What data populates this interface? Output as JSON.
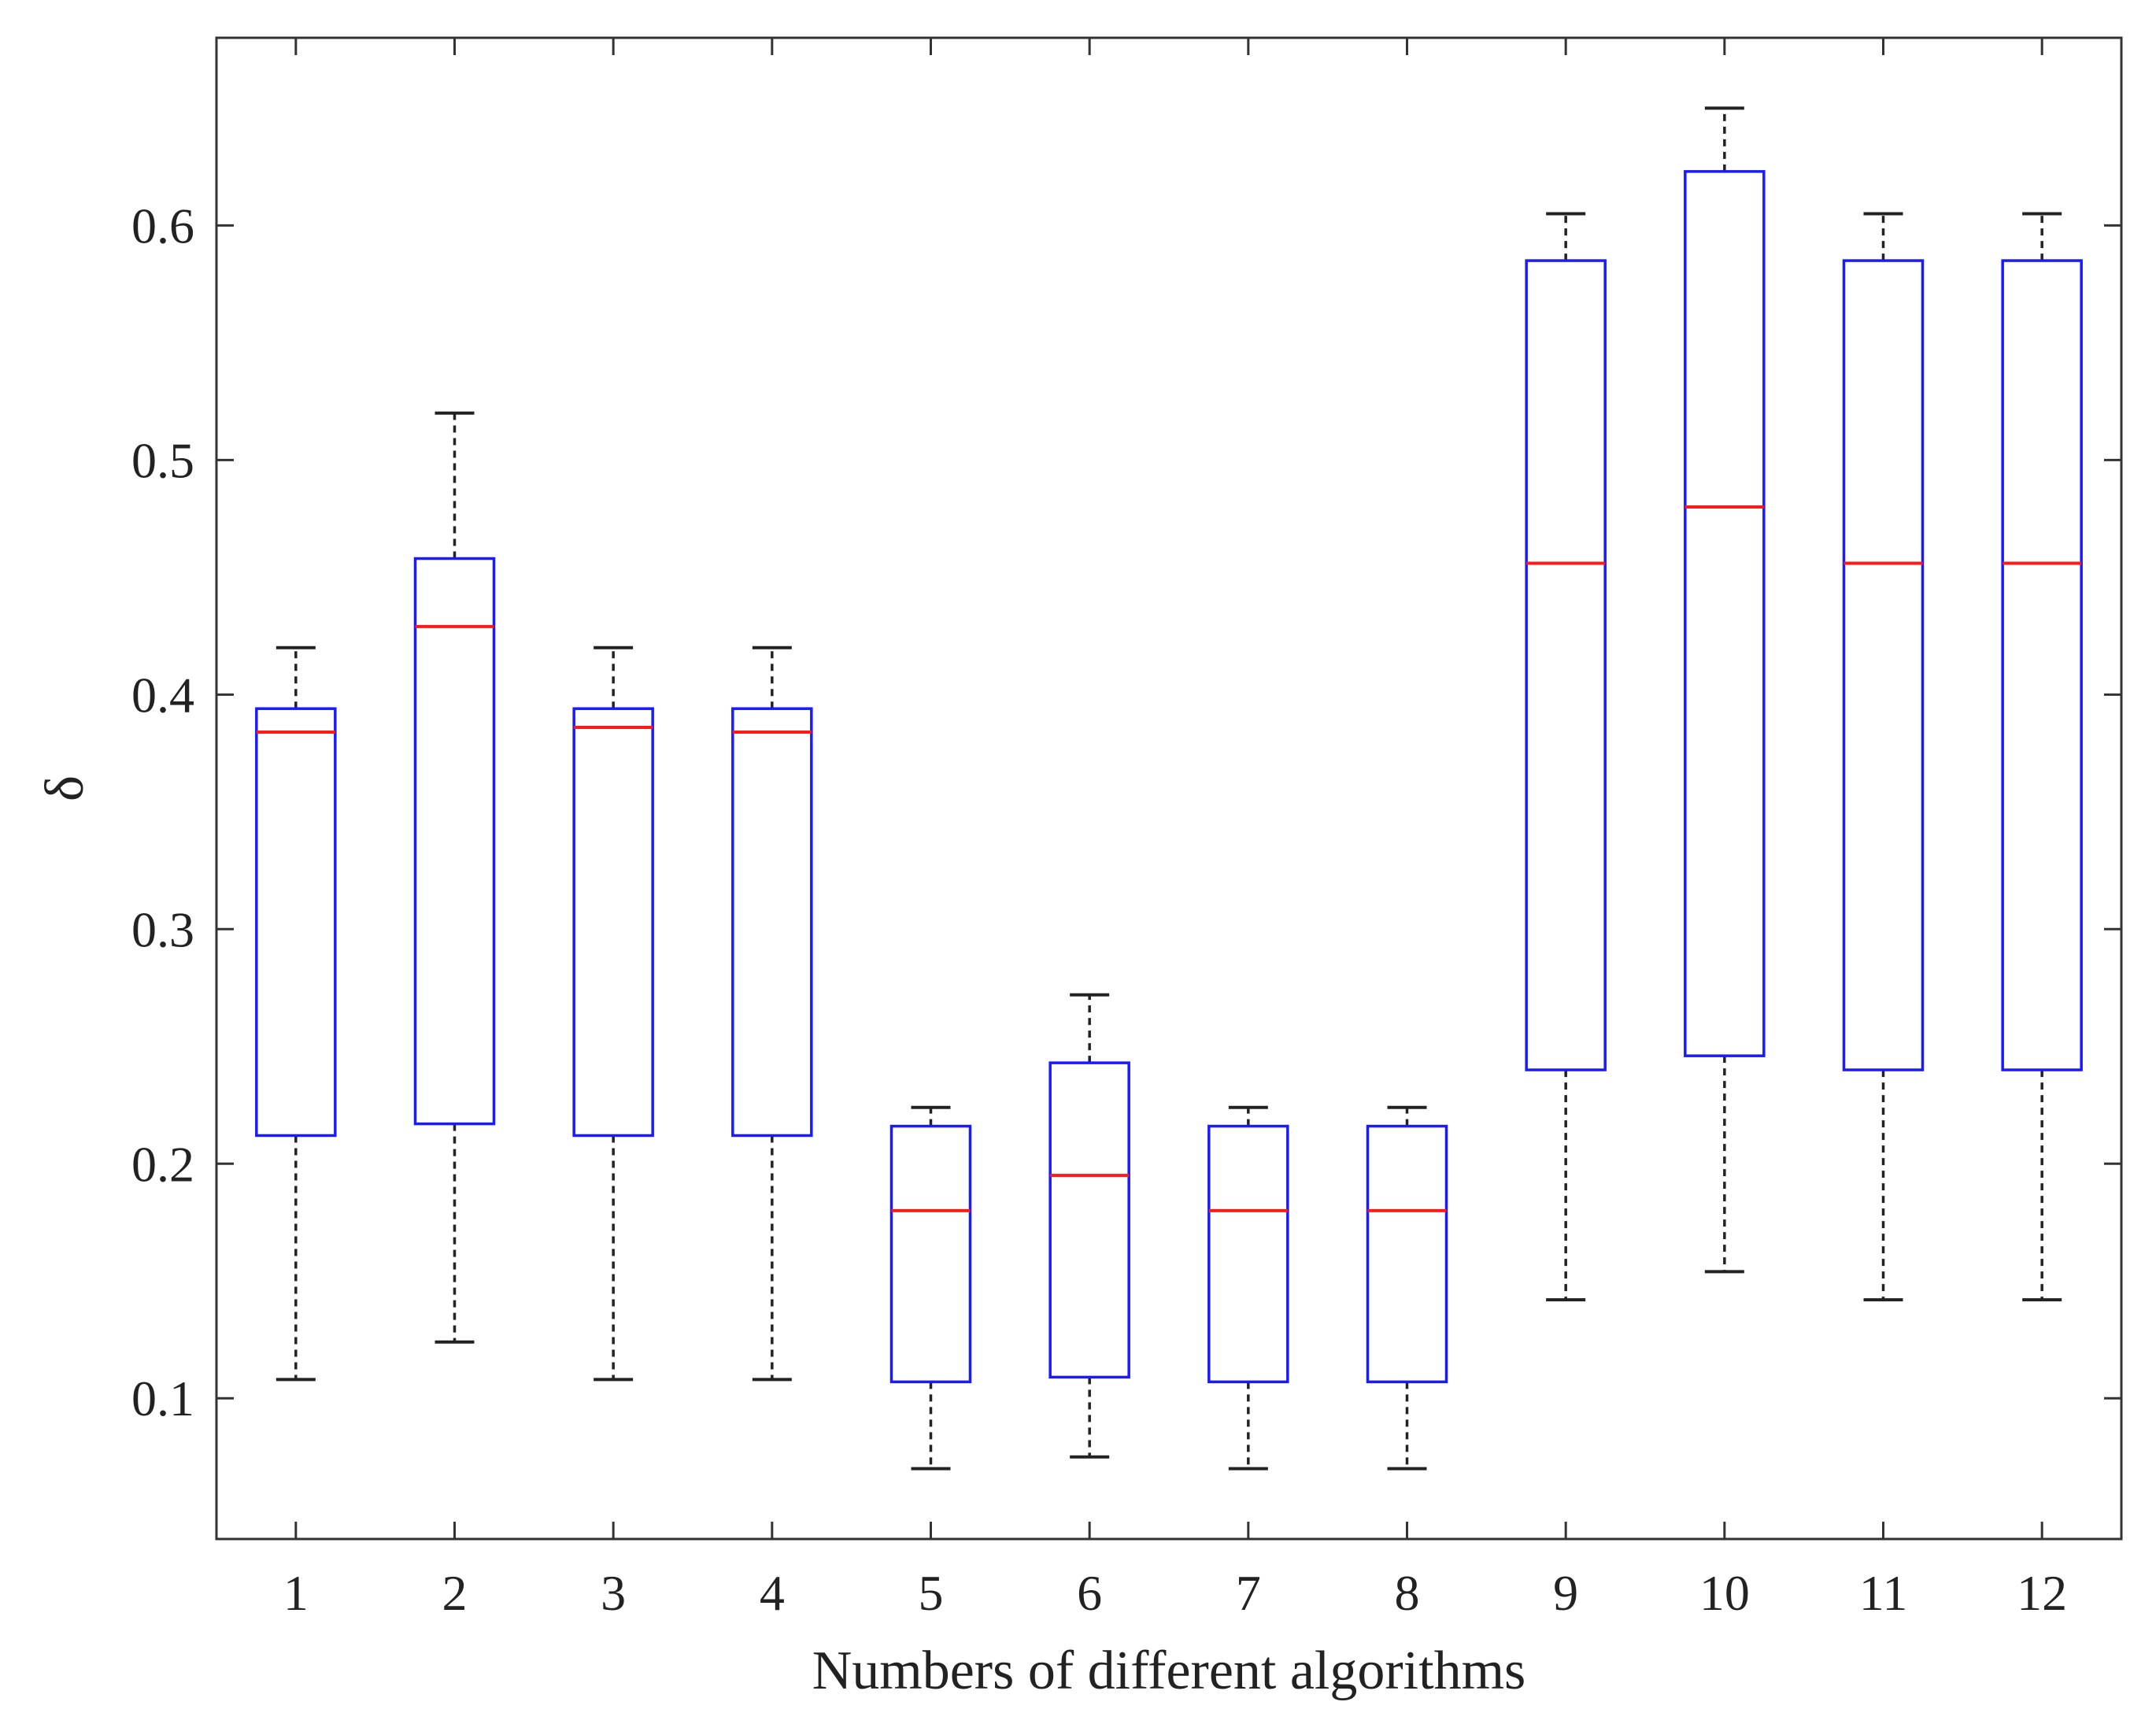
{
  "chart_data": {
    "type": "boxplot",
    "title": "",
    "xlabel": "Numbers of different algorithms",
    "ylabel": "δ",
    "categories": [
      "1",
      "2",
      "3",
      "4",
      "5",
      "6",
      "7",
      "8",
      "9",
      "10",
      "11",
      "12"
    ],
    "ylim": [
      0.04,
      0.68
    ],
    "yticks": [
      0.1,
      0.2,
      0.3,
      0.4,
      0.5,
      0.6
    ],
    "ytick_labels": [
      "0.1",
      "0.2",
      "0.3",
      "0.4",
      "0.5",
      "0.6"
    ],
    "boxes": [
      {
        "category": "1",
        "whisker_low": 0.108,
        "q1": 0.212,
        "median": 0.384,
        "q3": 0.394,
        "whisker_high": 0.42
      },
      {
        "category": "2",
        "whisker_low": 0.124,
        "q1": 0.217,
        "median": 0.429,
        "q3": 0.458,
        "whisker_high": 0.52
      },
      {
        "category": "3",
        "whisker_low": 0.108,
        "q1": 0.212,
        "median": 0.386,
        "q3": 0.394,
        "whisker_high": 0.42
      },
      {
        "category": "4",
        "whisker_low": 0.108,
        "q1": 0.212,
        "median": 0.384,
        "q3": 0.394,
        "whisker_high": 0.42
      },
      {
        "category": "5",
        "whisker_low": 0.07,
        "q1": 0.107,
        "median": 0.18,
        "q3": 0.216,
        "whisker_high": 0.224
      },
      {
        "category": "6",
        "whisker_low": 0.075,
        "q1": 0.109,
        "median": 0.195,
        "q3": 0.243,
        "whisker_high": 0.272
      },
      {
        "category": "7",
        "whisker_low": 0.07,
        "q1": 0.107,
        "median": 0.18,
        "q3": 0.216,
        "whisker_high": 0.224
      },
      {
        "category": "8",
        "whisker_low": 0.07,
        "q1": 0.107,
        "median": 0.18,
        "q3": 0.216,
        "whisker_high": 0.224
      },
      {
        "category": "9",
        "whisker_low": 0.142,
        "q1": 0.24,
        "median": 0.456,
        "q3": 0.585,
        "whisker_high": 0.605
      },
      {
        "category": "10",
        "whisker_low": 0.154,
        "q1": 0.246,
        "median": 0.48,
        "q3": 0.623,
        "whisker_high": 0.65
      },
      {
        "category": "11",
        "whisker_low": 0.142,
        "q1": 0.24,
        "median": 0.456,
        "q3": 0.585,
        "whisker_high": 0.605
      },
      {
        "category": "12",
        "whisker_low": 0.142,
        "q1": 0.24,
        "median": 0.456,
        "q3": 0.585,
        "whisker_high": 0.605
      }
    ],
    "colors": {
      "box": "#1a1aff",
      "median": "#ff1a1a",
      "whisker": "#222222",
      "axes": "#333333"
    },
    "grid": false,
    "legend": "none"
  }
}
